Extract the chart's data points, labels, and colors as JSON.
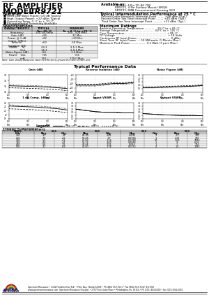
{
  "title_line1": "RF AMPLIFIER",
  "title_line2": "MODEL",
  "model_number": "TR9721",
  "available_as_label": "Available as:",
  "available_as_lines": [
    "TR9721, 4 Pin TO-86 (T8)",
    "RN9721, 4 Pin Surface Mount (SM18)",
    "SR9721, SMA Connectorized Housing (H2)"
  ],
  "features_title": "Features",
  "features": [
    "Ultra Low Noise Figure: 0.6 dB Typical",
    "High Output Power: +22 dBm Typical",
    "Operating Temp. 0 °C to + 70 °C",
    "Environmental Screening Available"
  ],
  "intermod_title": "Typical Intermodulation Performance at 25 ° C",
  "intermod_lines": [
    "Second Order Harmonic Intercept Point ........ +48 dBm (Typ.)",
    "Second Order Two Tone Intercept Point ........ +40 dBm (Typ.)",
    "Third Order Two Tone Intercept Point ........... +33 dBm (Typ.)"
  ],
  "specs_title": "Specifications",
  "spec_headers": [
    "CHARACTERISTIC",
    "TYPICAL\nTa= 25 °C",
    "MINIMUM\nTa = 0 °C to +70 °C"
  ],
  "spec_rows": [
    [
      "Frequency",
      "200-500 MHz",
      "200 - 500 MHz"
    ],
    [
      "Gain (dB)",
      "+34",
      "32 Min."
    ],
    [
      "Power @ 1 dB\nComp. (dBm)",
      "+22",
      "+20 Min."
    ],
    [
      "Reverse\nIsolation (dB)",
      "+60",
      "-60 Max."
    ],
    [
      "VSWR      In\n             Out",
      "2.2:1\n1.5:1",
      "2.5:1 Max.\n2.0:1 Max."
    ],
    [
      "Noise Figure (dB)",
      "0.6",
      "1.3 Max."
    ],
    [
      "Power    Vdc\n             mA",
      "+15\n150",
      "+15\n170.0 Max."
    ]
  ],
  "max_ratings_title": "Maximum Ratings",
  "max_ratings": [
    "Ambient Operating Temperature ............. -55°C to + 85 °C",
    "Storage Temperature ............................ -62°C to + 125 °C",
    "Case Temperature ............................................... + 85 °C",
    "DC Voltage ........................................................... + 18 Volts",
    "Continuous RF Input Power ...................................... 0 dBm",
    "Short Term RF Input Power .... 50 Milliwatts (1 Minute Max.)",
    "Maximum Peak Power .................. 0.5 Watt (3 μsec Max.)"
  ],
  "typical_perf_title": "Typical Performance Data",
  "graph_titles": [
    "Gain (dB)",
    "Reverse Isolation (dB)",
    "Noise Figure (dB)",
    "1 dB Comp. (dBm)",
    "Input VSWR",
    "Output VSWR"
  ],
  "legend_title": "Legend",
  "legend_items": [
    "+ 25 °C",
    "+ 70 °C",
    "0 °C"
  ],
  "legend_styles": [
    "solid",
    "dashed",
    "dotted"
  ],
  "linear_sparams_title": "Linear S-Parameters",
  "sparams_subheaders": [
    "MHz",
    "Mag.",
    "Odg.",
    "Mag.",
    "Odg.",
    "Mag.",
    "Odg.",
    "Mag.",
    "Odg."
  ],
  "sparams_data": [
    [
      "200",
      ".91",
      "22",
      "58.10",
      "-201",
      "0.000",
      "1",
      ".21",
      "750"
    ],
    [
      "250",
      ".76",
      "-43",
      "53.46",
      "-17",
      "0.0764",
      "1",
      ".221",
      "726"
    ],
    [
      "300",
      ".55",
      "-23",
      "52.03",
      "-118",
      "0.0780",
      "57",
      ".263",
      "7086"
    ],
    [
      "350",
      ".44",
      "-41",
      "52.15",
      "-160",
      "0.0886",
      "1",
      ".9",
      "6.26"
    ],
    [
      "400",
      ".54",
      "-75",
      "47.44",
      "-125",
      "0.044",
      "1",
      ".1",
      "714"
    ],
    [
      "500",
      ".31",
      "-89",
      "40.80",
      "-178",
      "0.0152",
      "4",
      "1.4",
      "1183"
    ]
  ],
  "footer_text": "Spectrum Microwave • 2144 Franklin Drive N.E. • Palm Bay, Florida 32905 • Ph (866) 553-7531 • Fax (866) 553-7532  8/17/06",
  "footer_text2": "www.spectrummicrowave.com  Spectrum Microwave (Europe) • 2707 Black Lake Place • Philadelphia, Pa. 19154 • Ph (215) 464-6000 • Fax (215) 464-6001",
  "bg_color": "#ffffff",
  "chart_data": {
    "gain": {
      "c25": [
        34.2,
        34.1,
        34.0,
        33.9,
        33.7,
        33.5,
        33.2
      ],
      "c70": [
        33.5,
        33.4,
        33.3,
        33.2,
        33.0,
        32.8,
        32.5
      ],
      "c0": [
        34.5,
        34.4,
        34.3,
        34.2,
        34.0,
        33.8,
        33.5
      ]
    },
    "isolation": {
      "c25": [
        -62,
        -62,
        -62,
        -61,
        -60,
        -60,
        -59
      ],
      "c70": [
        -61,
        -61,
        -61,
        -60,
        -59,
        -59,
        -58
      ],
      "c0": [
        -63,
        -63,
        -63,
        -62,
        -61,
        -61,
        -60
      ]
    },
    "nf": {
      "c25": [
        0.65,
        0.65,
        0.7,
        0.75,
        0.8,
        0.85,
        0.95
      ],
      "c70": [
        0.75,
        0.75,
        0.8,
        0.85,
        0.9,
        0.95,
        1.05
      ],
      "c0": [
        0.6,
        0.6,
        0.65,
        0.7,
        0.75,
        0.8,
        0.9
      ]
    },
    "comp": {
      "c25": [
        22.2,
        22.1,
        22.0,
        21.9,
        21.7,
        21.5,
        21.2
      ],
      "c70": [
        21.5,
        21.4,
        21.3,
        21.2,
        21.0,
        20.8,
        20.5
      ],
      "c0": [
        22.5,
        22.4,
        22.3,
        22.2,
        22.0,
        21.8,
        21.5
      ]
    },
    "in_vswr": {
      "c25": [
        2.5,
        2.3,
        2.1,
        2.0,
        2.0,
        1.9,
        1.9
      ],
      "c70": [
        2.5,
        2.3,
        2.1,
        2.0,
        2.0,
        1.9,
        1.9
      ],
      "c0": [
        2.5,
        2.3,
        2.1,
        2.0,
        2.0,
        1.9,
        1.9
      ]
    },
    "out_vswr": {
      "c25": [
        1.8,
        1.7,
        1.6,
        1.55,
        1.5,
        1.5,
        1.45
      ],
      "c70": [
        1.8,
        1.7,
        1.6,
        1.55,
        1.5,
        1.5,
        1.45
      ],
      "c0": [
        1.8,
        1.7,
        1.6,
        1.55,
        1.5,
        1.5,
        1.45
      ]
    }
  }
}
